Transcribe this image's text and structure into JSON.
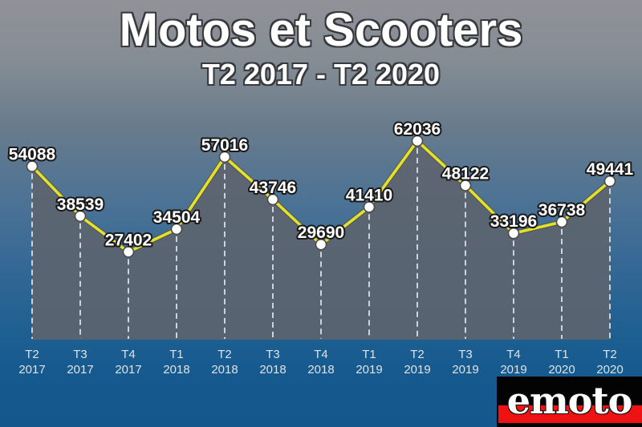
{
  "page": {
    "title": "Motos et Scooters",
    "subtitle": "T2 2017 - T2 2020"
  },
  "logo": {
    "text": "emoto",
    "background_color": "#030303",
    "stripe_color": "#ee1212",
    "text_color": "#fdfdfd"
  },
  "chart_data": {
    "type": "line",
    "title": "Motos et Scooters",
    "subtitle": "T2 2017 - T2 2020",
    "categories": [
      "T2 2017",
      "T3 2017",
      "T4 2017",
      "T1 2018",
      "T2 2018",
      "T3 2018",
      "T4 2018",
      "T1 2019",
      "T2 2019",
      "T3 2019",
      "T4 2019",
      "T1 2020",
      "T2 2020"
    ],
    "values": [
      54088,
      38539,
      27402,
      34504,
      57016,
      43746,
      29690,
      41410,
      62036,
      48122,
      33196,
      36738,
      49441
    ],
    "ylim": [
      0,
      66500
    ],
    "xlabel": "",
    "ylabel": "",
    "legend": "none",
    "grid": "vertical-dashed-droplines",
    "area": true,
    "colors": {
      "line": "#e6df2c",
      "line_edge": "rgba(70,70,25,0.40)",
      "marker_fill": "#ffffff",
      "marker_stroke": "#4a4a4a",
      "area_fill": "rgba(93,100,110,0.90)",
      "dropline": "#ccd3d9",
      "value_label": "#ffffff",
      "value_label_outline": "#1a1a1a",
      "axis_label": "#dce3e9"
    }
  }
}
